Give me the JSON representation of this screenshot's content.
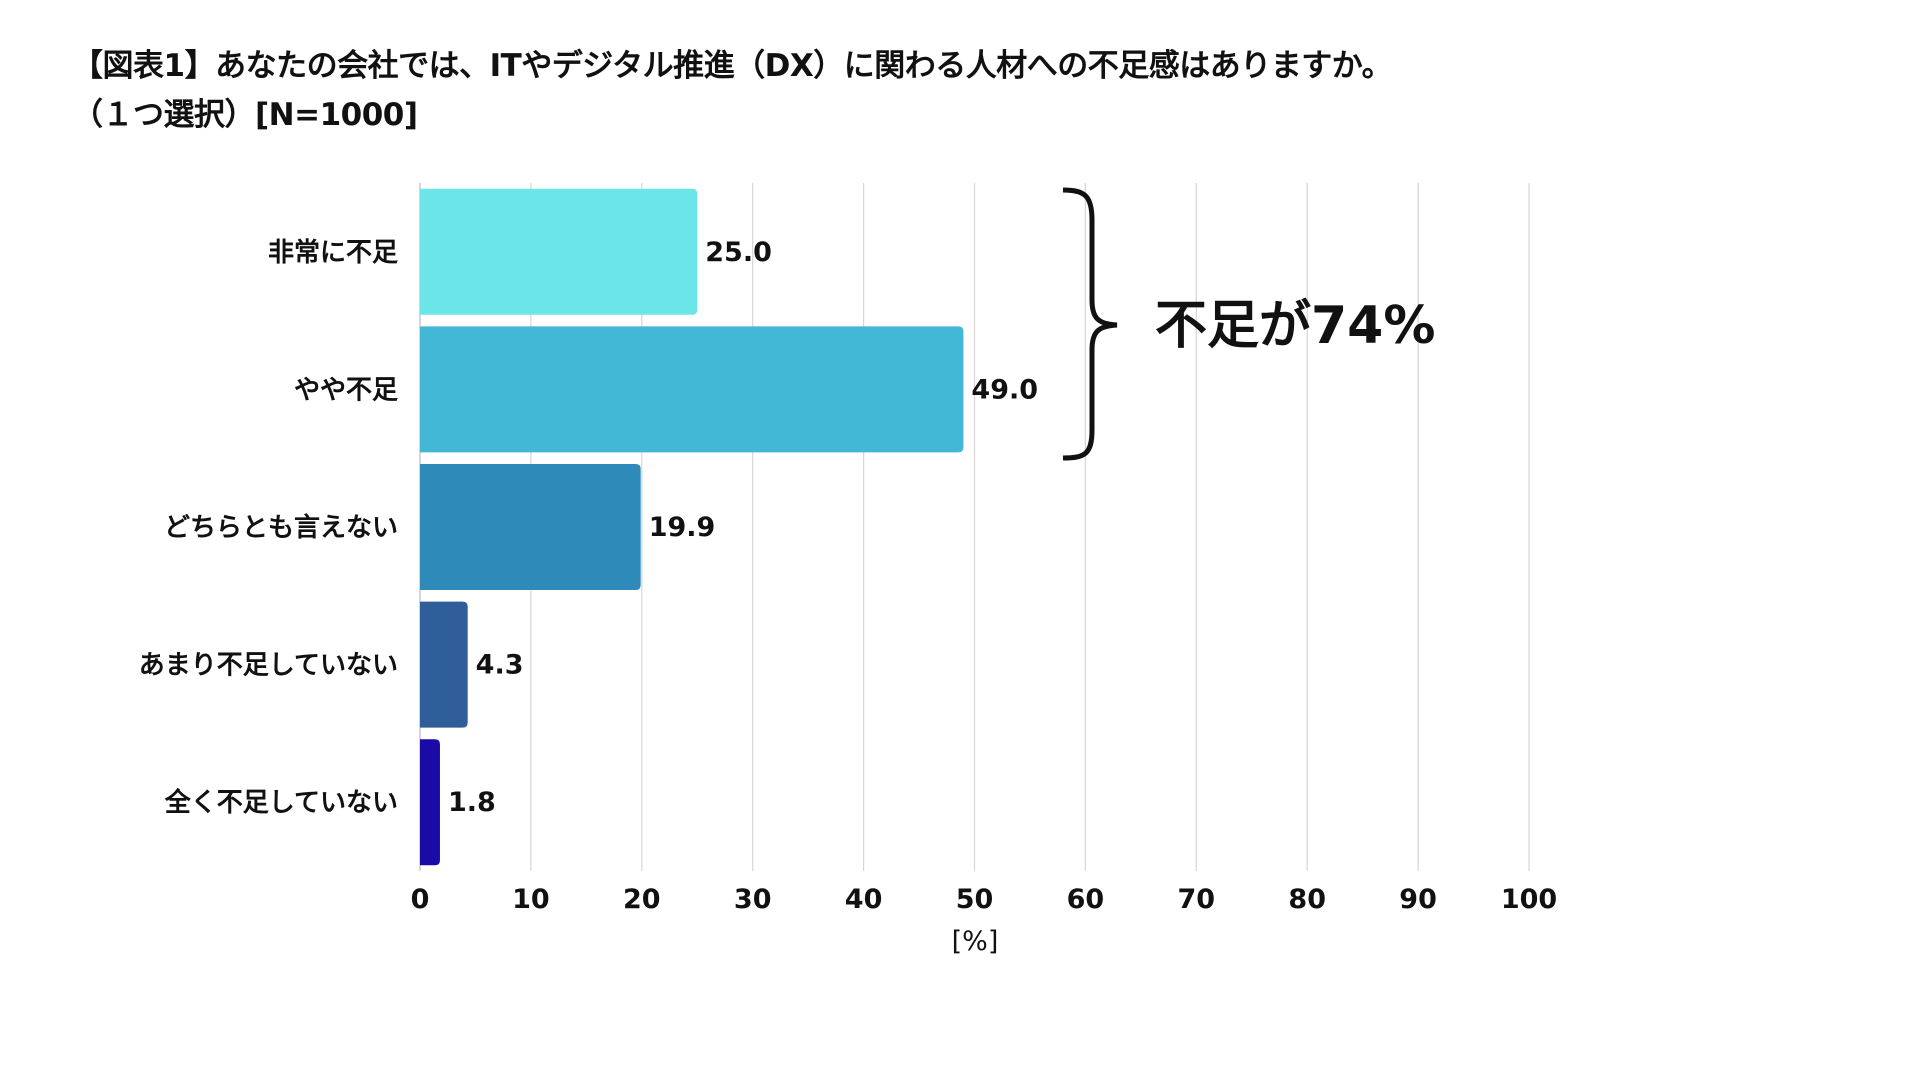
{
  "title_line1": "【図表1】あなたの会社では、ITやデジタル推進（DX）に関わる人材への不足感はありますか。",
  "title_line2": "（１つ選択）[N=1000]",
  "chart_data": {
    "type": "bar",
    "orientation": "horizontal",
    "categories": [
      "非常に不足",
      "やや不足",
      "どちらとも言えない",
      "あまり不足していない",
      "全く不足していない"
    ],
    "values": [
      25.0,
      49.0,
      19.9,
      4.3,
      1.8
    ],
    "value_labels": [
      "25.0",
      "49.0",
      "19.9",
      "4.3",
      "1.8"
    ],
    "colors": [
      "#6ce5e8",
      "#42b7d6",
      "#2e8ab8",
      "#2f5e98",
      "#1a0aa8"
    ],
    "xlabel": "[%]",
    "xlim": [
      0,
      100
    ],
    "xticks": [
      "0",
      "10",
      "20",
      "30",
      "40",
      "50",
      "60",
      "70",
      "80",
      "90",
      "100"
    ],
    "grid": "vertical",
    "annotation": "不足が74%"
  }
}
